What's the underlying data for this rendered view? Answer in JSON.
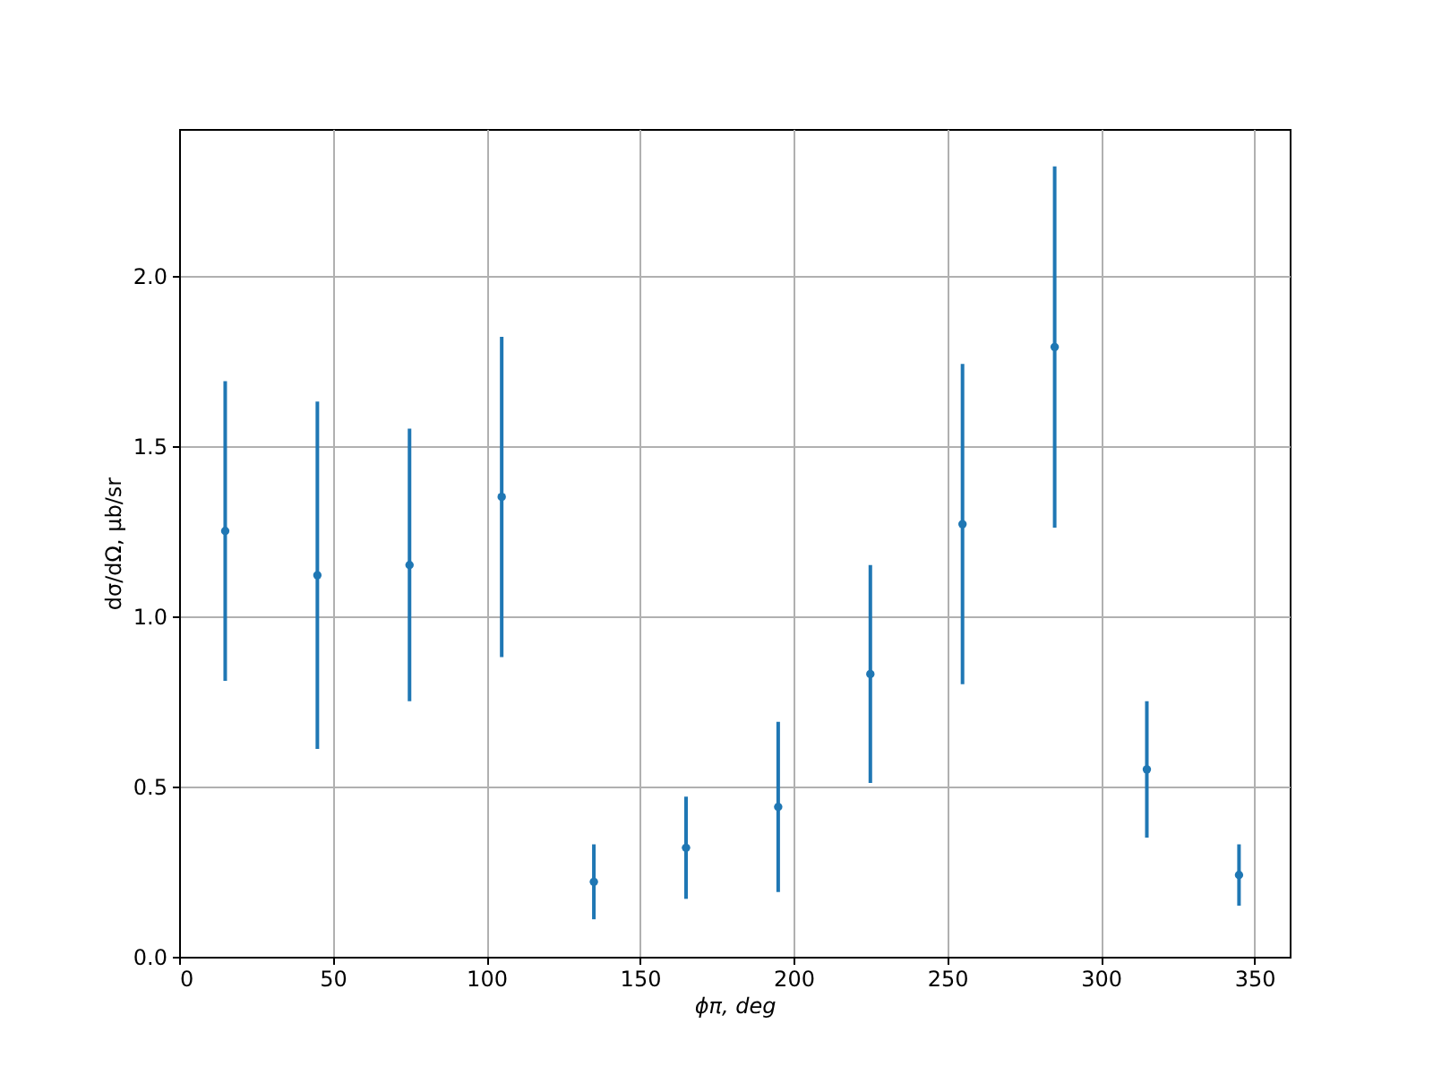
{
  "chart_data": {
    "type": "scatter",
    "xlabel": "ϕπ, deg",
    "ylabel": "dσ/dΩ, μb/sr",
    "x": [
      15,
      45,
      75,
      105,
      135,
      165,
      195,
      225,
      255,
      285,
      315,
      345
    ],
    "series": [
      {
        "color": "#1f77b4",
        "values": [
          1.25,
          1.12,
          1.15,
          1.35,
          0.22,
          0.32,
          0.44,
          0.83,
          1.27,
          1.79,
          0.55,
          0.24
        ],
        "errors": [
          0.44,
          0.51,
          0.4,
          0.47,
          0.11,
          0.15,
          0.25,
          0.32,
          0.47,
          0.53,
          0.2,
          0.09
        ]
      }
    ],
    "xlim": [
      0,
      361.5
    ],
    "ylim": [
      0,
      2.43
    ],
    "xticks": [
      0,
      50,
      100,
      150,
      200,
      250,
      300,
      350
    ],
    "yticks": [
      {
        "value": 0,
        "label": "0.0"
      },
      0.5,
      {
        "value": 1,
        "label": "1.0"
      },
      1.5,
      {
        "value": 2,
        "label": "2.0"
      }
    ],
    "grid": true,
    "marker": "circle"
  }
}
